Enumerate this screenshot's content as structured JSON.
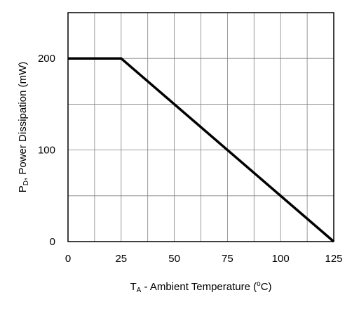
{
  "chart_data": {
    "type": "line",
    "title": "",
    "xlabel": {
      "base": "T",
      "subscript": "A",
      "text": " - Ambient Temperature (",
      "superscript": "o",
      "unit_tail": "C)"
    },
    "ylabel": {
      "base": "P",
      "subscript": "D",
      "text": ", Power Dissipation (mW)"
    },
    "xlim": [
      0,
      125
    ],
    "ylim": [
      0,
      250
    ],
    "x_ticks": [
      0,
      25,
      50,
      75,
      100,
      125
    ],
    "x_tick_labels": [
      "0",
      "25",
      "50",
      "75",
      "100",
      "125"
    ],
    "y_ticks": [
      0,
      100,
      200
    ],
    "y_tick_labels": [
      "0",
      "100",
      "200"
    ],
    "x_grid": [
      12.5,
      25,
      37.5,
      50,
      62.5,
      75,
      87.5,
      100,
      112.5
    ],
    "y_grid": [
      50,
      100,
      150,
      200
    ],
    "grid": true,
    "series": [
      {
        "x": [
          0,
          25,
          125
        ],
        "y": [
          200,
          200,
          0
        ]
      }
    ],
    "colors": {
      "line": "#000000",
      "grid": "#808080",
      "frame": "#000000"
    }
  }
}
